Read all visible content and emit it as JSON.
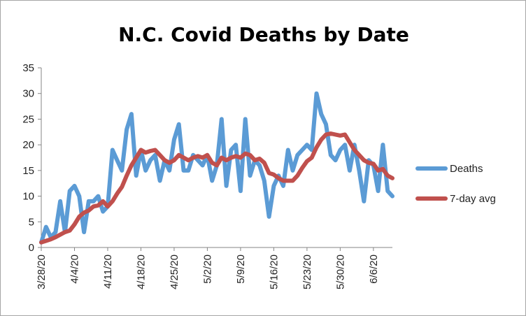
{
  "chart_data": {
    "type": "line",
    "title": "N.C. Covid Deaths by Date",
    "xlabel": "",
    "ylabel": "",
    "ylim": [
      0,
      35
    ],
    "yticks": [
      0,
      5,
      10,
      15,
      20,
      25,
      30,
      35
    ],
    "xtick_labels": [
      "3/28/20",
      "4/4/20",
      "4/11/20",
      "4/18/20",
      "4/25/20",
      "5/2/20",
      "5/9/20",
      "5/16/20",
      "5/23/20",
      "5/30/20",
      "6/6/20"
    ],
    "xtick_step_days": 7,
    "grid": false,
    "legend_position": "right",
    "x": [
      "3/28/20",
      "3/29/20",
      "3/30/20",
      "3/31/20",
      "4/1/20",
      "4/2/20",
      "4/3/20",
      "4/4/20",
      "4/5/20",
      "4/6/20",
      "4/7/20",
      "4/8/20",
      "4/9/20",
      "4/10/20",
      "4/11/20",
      "4/12/20",
      "4/13/20",
      "4/14/20",
      "4/15/20",
      "4/16/20",
      "4/17/20",
      "4/18/20",
      "4/19/20",
      "4/20/20",
      "4/21/20",
      "4/22/20",
      "4/23/20",
      "4/24/20",
      "4/25/20",
      "4/26/20",
      "4/27/20",
      "4/28/20",
      "4/29/20",
      "4/30/20",
      "5/1/20",
      "5/2/20",
      "5/3/20",
      "5/4/20",
      "5/5/20",
      "5/6/20",
      "5/7/20",
      "5/8/20",
      "5/9/20",
      "5/10/20",
      "5/11/20",
      "5/12/20",
      "5/13/20",
      "5/14/20",
      "5/15/20",
      "5/16/20",
      "5/17/20",
      "5/18/20",
      "5/19/20",
      "5/20/20",
      "5/21/20",
      "5/22/20",
      "5/23/20",
      "5/24/20",
      "5/25/20",
      "5/26/20",
      "5/27/20",
      "5/28/20",
      "5/29/20",
      "5/30/20",
      "5/31/20",
      "6/1/20",
      "6/2/20",
      "6/3/20",
      "6/4/20",
      "6/5/20",
      "6/6/20",
      "6/7/20",
      "6/8/20",
      "6/9/20",
      "6/10/20"
    ],
    "series": [
      {
        "name": "Deaths",
        "color": "#5b9bd5",
        "values": [
          1,
          4,
          2,
          3,
          9,
          3,
          11,
          12,
          10,
          3,
          9,
          9,
          10,
          7,
          8,
          19,
          17,
          15,
          23,
          26,
          14,
          19,
          15,
          17,
          18,
          13,
          17,
          15,
          21,
          24,
          15,
          15,
          18,
          17,
          16,
          18,
          13,
          16,
          25,
          12,
          19,
          20,
          11,
          25,
          14,
          17,
          16,
          13,
          6,
          12,
          14,
          12,
          19,
          15,
          18,
          19,
          20,
          19,
          30,
          26,
          24,
          18,
          17,
          19,
          20,
          15,
          20,
          15,
          9,
          17,
          16,
          11,
          20,
          11,
          10
        ]
      },
      {
        "name": "7-day avg",
        "color": "#c0504d",
        "values": [
          1,
          1.3,
          1.6,
          2,
          2.5,
          3,
          3.3,
          4.5,
          6,
          6.8,
          7.2,
          8,
          8.2,
          9,
          8,
          9,
          10.5,
          11.8,
          14,
          16,
          17.5,
          19,
          18.5,
          18.8,
          19,
          18,
          17,
          16.5,
          17,
          18,
          17.5,
          17,
          17.5,
          17.8,
          17.5,
          18,
          16.5,
          16,
          17.5,
          17,
          17.5,
          17.8,
          17.5,
          18.3,
          18,
          17,
          17.3,
          16.5,
          14.5,
          14.2,
          13.5,
          13,
          13,
          13,
          14,
          15.5,
          16.8,
          17.5,
          19.5,
          21,
          22,
          22.2,
          22,
          21.8,
          22,
          20.5,
          19,
          18,
          17,
          16.5,
          16.3,
          15,
          15.3,
          14,
          13.5
        ]
      }
    ]
  }
}
